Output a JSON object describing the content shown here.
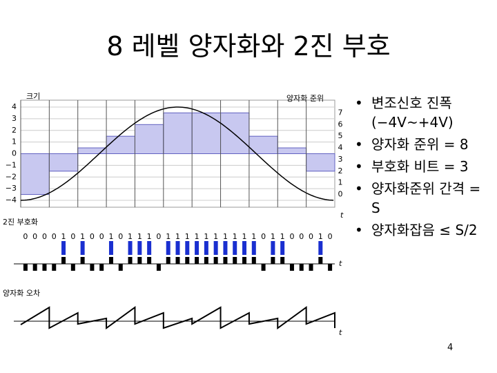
{
  "header": {
    "title": "8 레벨 양자화와 2진 부호"
  },
  "figure": {
    "y_axis_label": "크기",
    "level_axis_label": "양자화 준위",
    "coding_label": "2진 부호화",
    "error_label": "양자화 오차",
    "time_label": "t",
    "amplitude_labels": [
      "4",
      "3",
      "2",
      "1",
      "0",
      "−1",
      "−2",
      "−3",
      "−4"
    ],
    "level_labels": [
      "7",
      "6",
      "5",
      "4",
      "3",
      "2",
      "1",
      "0"
    ],
    "bits": [
      "0",
      "0",
      "0",
      "0",
      "1",
      "0",
      "1",
      "0",
      "0",
      "1",
      "0",
      "1",
      "1",
      "1",
      "0",
      "1",
      "1",
      "1",
      "1",
      "1",
      "1",
      "1",
      "1",
      "1",
      "1",
      "0",
      "1",
      "1",
      "0",
      "0",
      "0",
      "1",
      "0"
    ]
  },
  "bullets": [
    "변조신호 진폭(−4V~+4V)",
    "양자화 준위 = 8",
    "부호화 비트 = 3",
    "양자화준위 간격 = S",
    "양자화잡음 ≤ S/2"
  ],
  "footer": {
    "page": "4"
  }
}
